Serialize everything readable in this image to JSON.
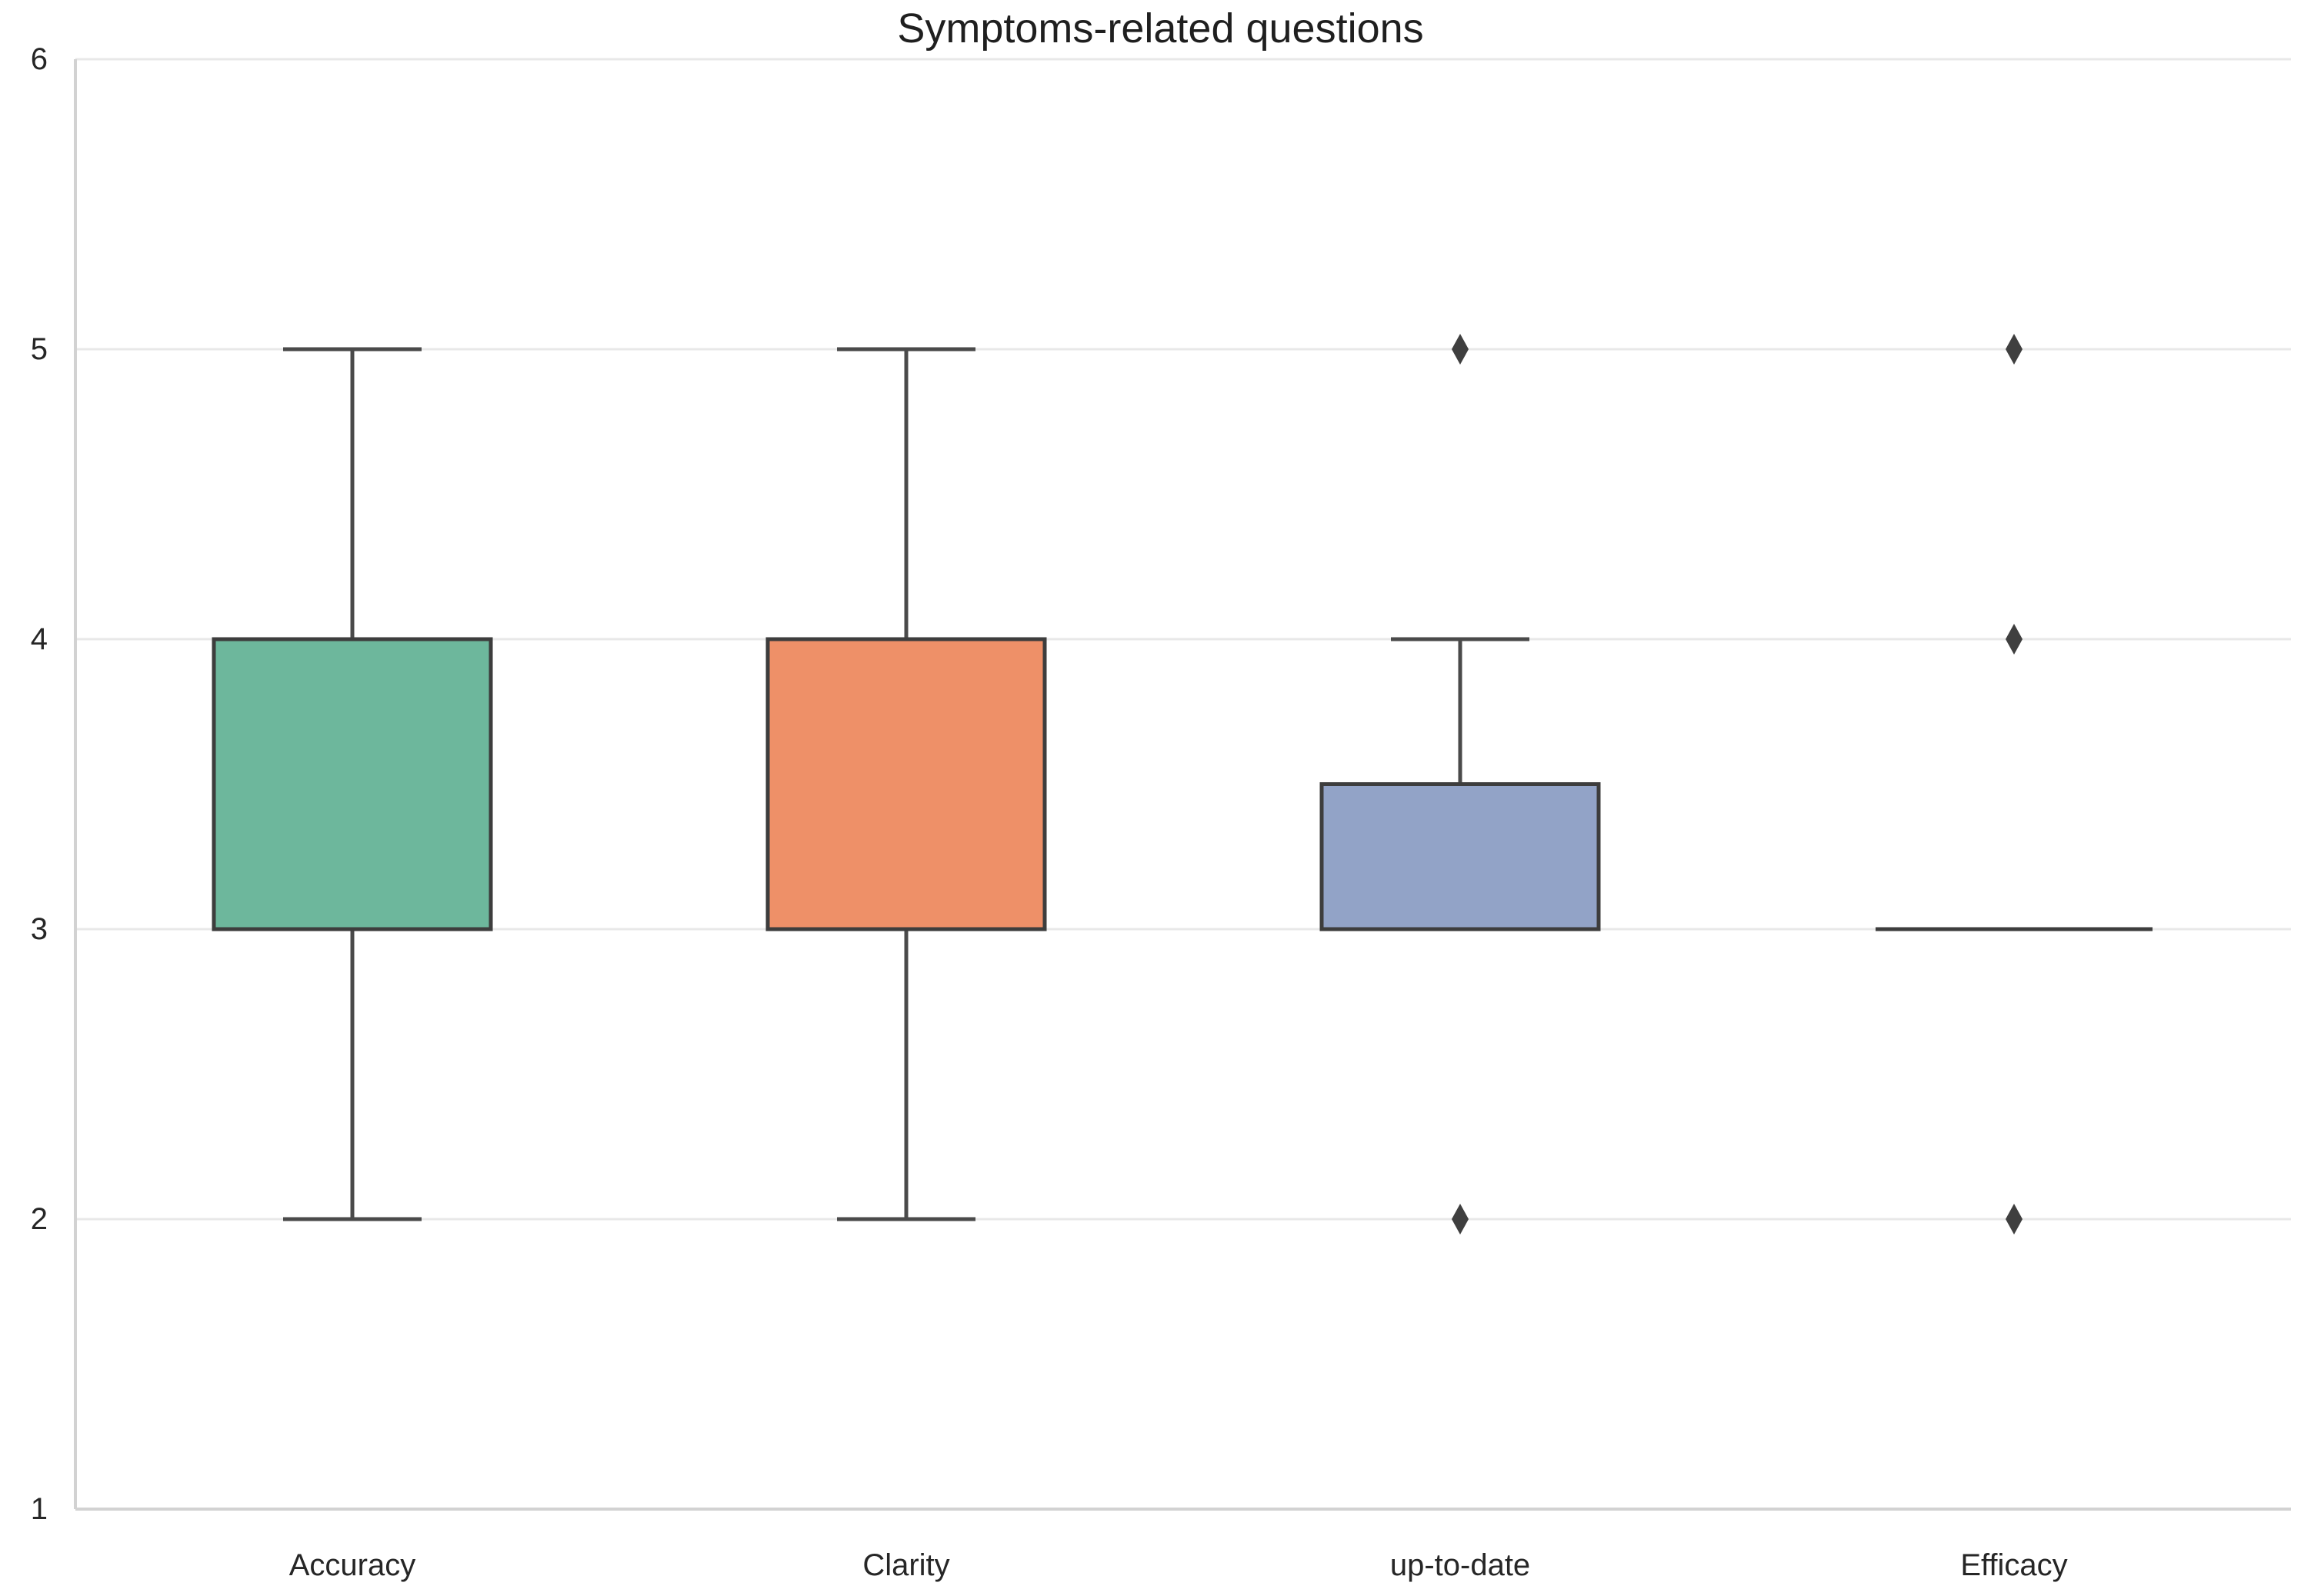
{
  "chart_data": {
    "type": "boxplot",
    "title": "Symptoms-related questions",
    "xlabel": "",
    "ylabel": "",
    "categories": [
      "Accuracy",
      "Clarity",
      "up-to-date",
      "Efficacy"
    ],
    "ylim": [
      1,
      6
    ],
    "yticks": [
      "1",
      "2",
      "3",
      "4",
      "5",
      "6"
    ],
    "grid": "horizontal-only",
    "legend": "none",
    "outlier_marker": "thin-diamond",
    "boxes": [
      {
        "category": "Accuracy",
        "q1": 3,
        "median": 3,
        "q3": 4,
        "whisker_low": 2,
        "whisker_high": 5,
        "outliers": [],
        "fill": "#6db79c"
      },
      {
        "category": "Clarity",
        "q1": 3,
        "median": 3,
        "q3": 4,
        "whisker_low": 2,
        "whisker_high": 5,
        "outliers": [],
        "fill": "#ee9068"
      },
      {
        "category": "up-to-date",
        "q1": 3,
        "median": 3,
        "q3": 3.5,
        "whisker_low": 3,
        "whisker_high": 4,
        "outliers": [
          5,
          2
        ],
        "fill": "#92a3c7"
      },
      {
        "category": "Efficacy",
        "q1": 3,
        "median": 3,
        "q3": 3,
        "whisker_low": 3,
        "whisker_high": 3,
        "outliers": [
          5,
          4,
          2
        ],
        "fill": "#e490c0"
      }
    ],
    "colors": {
      "box_edge": "#3d3d3d",
      "whisker": "#4a4a4a",
      "outlier": "#3f3f3f",
      "gridline": "#e8e8e8",
      "spine": "#d2d2d2",
      "tick_text": "#262626",
      "title_text": "#1f1f1f"
    }
  }
}
